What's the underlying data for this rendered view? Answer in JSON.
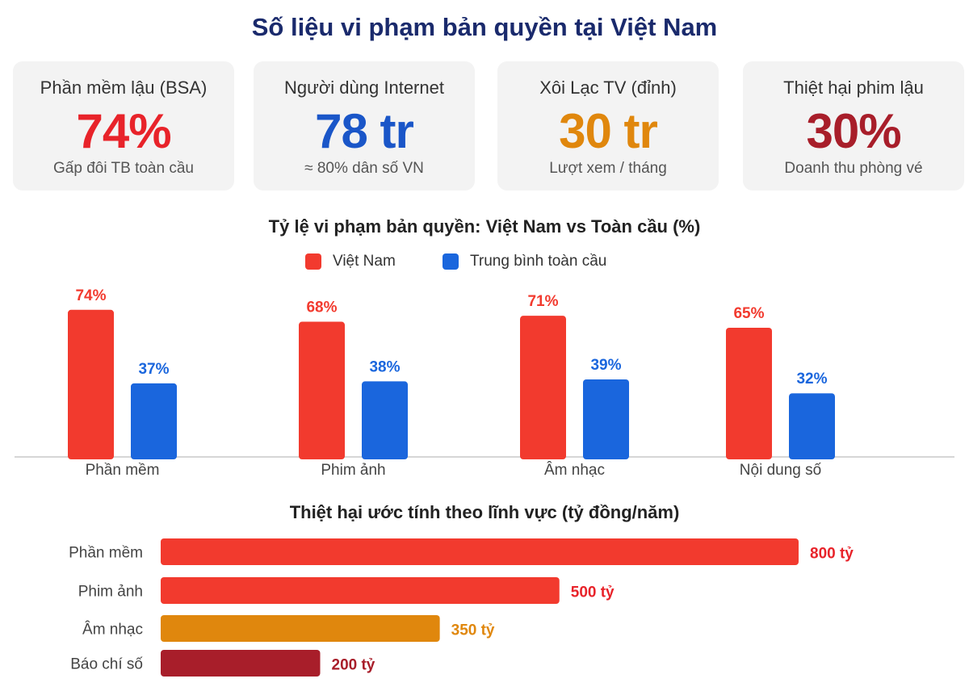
{
  "title": "Số liệu vi phạm bản quyền tại Việt Nam",
  "cards": [
    {
      "label": "Phần mềm lậu (BSA)",
      "value": "74%",
      "sub": "Gấp đôi TB toàn cầu",
      "color": "#e8232a"
    },
    {
      "label": "Người dùng Internet",
      "value": "78 tr",
      "sub": "≈ 80% dân số VN",
      "color": "#1a56c8"
    },
    {
      "label": "Xôi Lạc TV (đỉnh)",
      "value": "30 tr",
      "sub": "Lượt xem / tháng",
      "color": "#e0870d"
    },
    {
      "label": "Thiệt hại phim lậu",
      "value": "30%",
      "sub": "Doanh thu phòng vé",
      "color": "#a81e2a"
    }
  ],
  "chart_data": [
    {
      "type": "bar",
      "title": "Tỷ lệ vi phạm bản quyền: Việt Nam vs Toàn cầu (%)",
      "categories": [
        "Phần mềm",
        "Phim ảnh",
        "Âm nhạc",
        "Nội dung số"
      ],
      "series": [
        {
          "name": "Việt Nam",
          "values": [
            74,
            68,
            71,
            65
          ],
          "labels": [
            "74%",
            "68%",
            "71%",
            "65%"
          ],
          "color": "#f23a2e"
        },
        {
          "name": "Trung bình toàn cầu",
          "values": [
            37,
            38,
            39,
            32
          ],
          "labels": [
            "37%",
            "38%",
            "39%",
            "32%"
          ],
          "color": "#1a66dd"
        }
      ],
      "ylim": [
        0,
        80
      ],
      "legend": "top-center",
      "grid": false
    },
    {
      "type": "bar",
      "orientation": "horizontal",
      "title": "Thiệt hại ước tính theo lĩnh vực (tỷ đồng/năm)",
      "categories": [
        "Phần mềm",
        "Phim ảnh",
        "Âm nhạc",
        "Báo chí số"
      ],
      "values": [
        800,
        500,
        350,
        200
      ],
      "labels": [
        "800 tỷ",
        "500 tỷ",
        "350 tỷ",
        "200 tỷ"
      ],
      "colors": [
        "#f23a2e",
        "#f23a2e",
        "#e0870d",
        "#a81e2a"
      ],
      "label_colors": [
        "#e8232a",
        "#e8232a",
        "#e0870d",
        "#a81e2a"
      ],
      "xlim": [
        0,
        800
      ],
      "grid": false
    }
  ]
}
